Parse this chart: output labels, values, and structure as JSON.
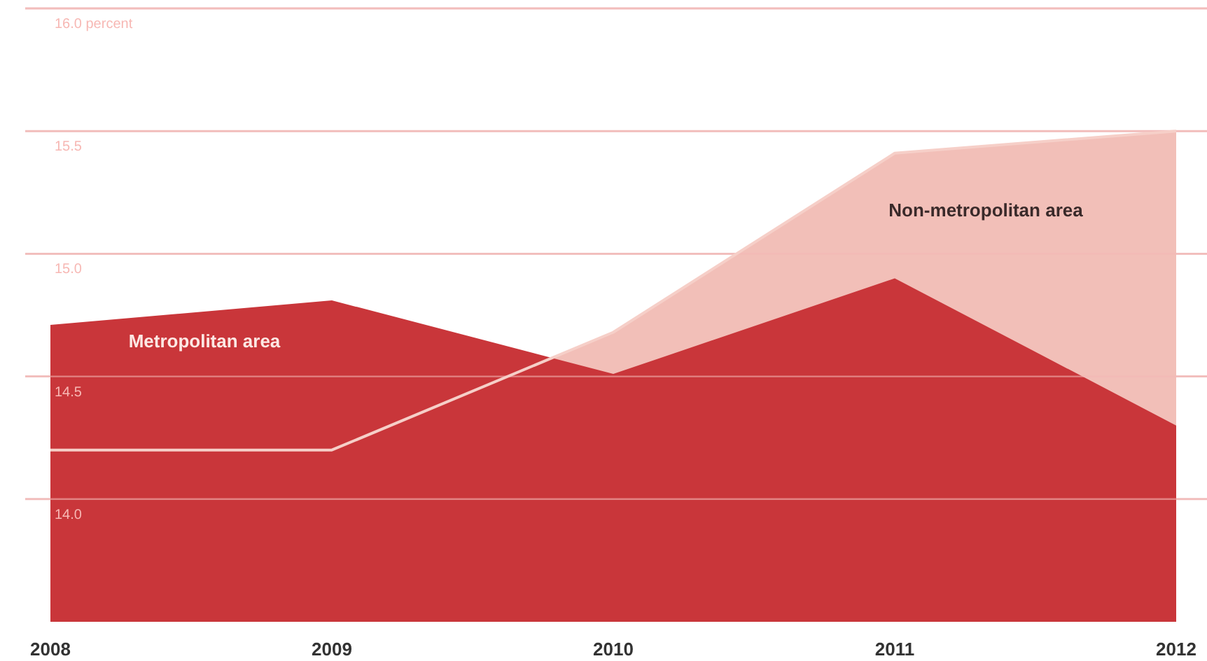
{
  "chart_data": {
    "type": "area",
    "categories": [
      "2008",
      "2009",
      "2010",
      "2011",
      "2012"
    ],
    "series": [
      {
        "name": "Non-metropolitan area",
        "color": "#f2bfb8",
        "values": [
          14.2,
          14.2,
          14.68,
          15.41,
          15.5
        ]
      },
      {
        "name": "Metropolitan area",
        "color": "#c9363a",
        "values": [
          14.71,
          14.81,
          14.51,
          14.9,
          14.3
        ]
      }
    ],
    "ylim": [
      13.5,
      16
    ],
    "yticks": [
      {
        "value": 14,
        "label": "14.0"
      },
      {
        "value": 14.5,
        "label": "14.5"
      },
      {
        "value": 15,
        "label": "15.0"
      },
      {
        "value": 15.5,
        "label": "15.5"
      },
      {
        "value": 16,
        "label": "16.0 percent"
      }
    ],
    "grid": "y"
  }
}
